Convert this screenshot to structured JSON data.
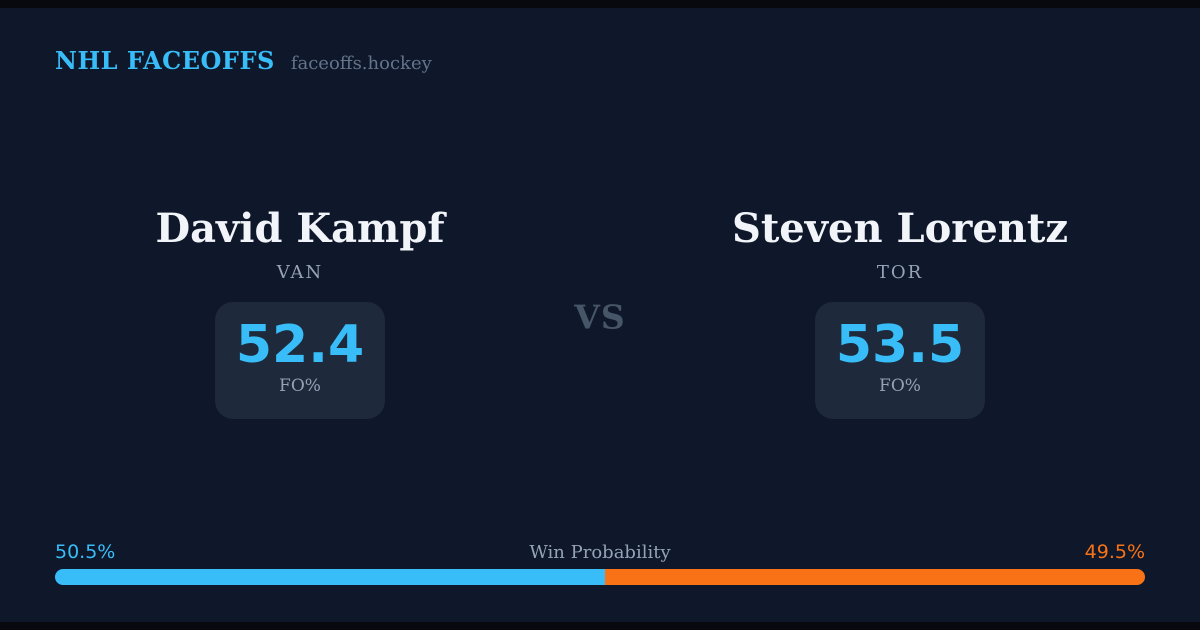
{
  "header": {
    "brand": "NHL FACEOFFS",
    "site": "faceoffs.hockey"
  },
  "matchup": {
    "vs_label": "VS",
    "players": [
      {
        "name": "David Kampf",
        "team": "VAN",
        "stat_value": "52.4",
        "stat_label": "FO%"
      },
      {
        "name": "Steven Lorentz",
        "team": "TOR",
        "stat_value": "53.5",
        "stat_label": "FO%"
      }
    ]
  },
  "win_probability": {
    "title": "Win Probability",
    "left_label": "50.5%",
    "right_label": "49.5%",
    "left_pct": 50.5,
    "right_pct": 49.5,
    "left_color": "#38bdf8",
    "right_color": "#f97316"
  },
  "colors": {
    "background": "#0f172a",
    "frame": "#07090e",
    "stat_box": "#1e293b",
    "accent_blue": "#38bdf8",
    "accent_orange": "#f97316",
    "text_primary": "#f1f5f9",
    "text_muted": "#94a3b8",
    "text_dim": "#64748b",
    "vs_text": "#475569"
  }
}
